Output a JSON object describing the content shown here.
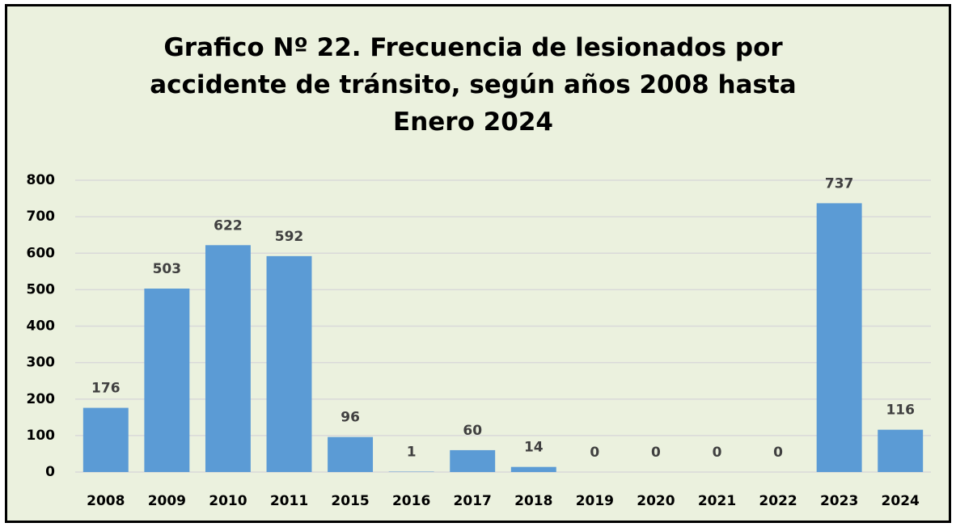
{
  "chart_data": {
    "type": "bar",
    "title": "Grafico Nº 22. Frecuencia de lesionados por accidente de tránsito, según años 2008 hasta Enero 2024",
    "categories": [
      "2008",
      "2009",
      "2010",
      "2011",
      "2015",
      "2016",
      "2017",
      "2018",
      "2019",
      "2020",
      "2021",
      "2022",
      "2023",
      "2024"
    ],
    "values": [
      176,
      503,
      622,
      592,
      96,
      1,
      60,
      14,
      0,
      0,
      0,
      0,
      737,
      116
    ],
    "color": "#5b9bd5",
    "ylim": [
      0,
      800
    ],
    "yticks": [
      0,
      100,
      200,
      300,
      400,
      500,
      600,
      700,
      800
    ],
    "grid": true
  }
}
